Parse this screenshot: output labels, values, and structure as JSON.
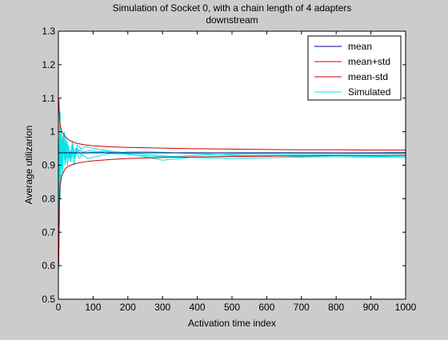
{
  "chart_data": {
    "type": "line",
    "title_lines": [
      "Simulation of Socket 0, with a chain length of 4 adapters",
      "downstream"
    ],
    "xlabel": "Activation time index",
    "ylabel": "Average utilizarion",
    "xlim": [
      0,
      1000
    ],
    "ylim": [
      0.5,
      1.3
    ],
    "xticks": [
      0,
      100,
      200,
      300,
      400,
      500,
      600,
      700,
      800,
      900,
      1000
    ],
    "yticks": [
      0.5,
      0.6,
      0.7,
      0.8,
      0.9,
      1.0,
      1.1,
      1.2,
      1.3
    ],
    "ytick_labels": [
      "0.5",
      "0.6",
      "0.7",
      "0.8",
      "0.9",
      "1",
      "1.1",
      "1.2",
      "1.3"
    ],
    "grid": false,
    "legend_position": "top-right",
    "series": [
      {
        "name": "mean",
        "color": "#00007f",
        "x": [
          0,
          1000
        ],
        "y": [
          0.937,
          0.937
        ]
      },
      {
        "name": "mean+std",
        "color": "#cc0000",
        "x": [
          1,
          3,
          5,
          10,
          20,
          30,
          50,
          75,
          100,
          150,
          200,
          300,
          400,
          500,
          600,
          700,
          800,
          900,
          1000
        ],
        "y": [
          1.1,
          1.05,
          1.02,
          1.0,
          0.985,
          0.975,
          0.966,
          0.961,
          0.958,
          0.955,
          0.953,
          0.951,
          0.949,
          0.948,
          0.947,
          0.946,
          0.946,
          0.945,
          0.945
        ]
      },
      {
        "name": "mean-std",
        "color": "#cc0000",
        "x": [
          1,
          2,
          3,
          5,
          10,
          20,
          30,
          50,
          75,
          100,
          150,
          200,
          300,
          400,
          500,
          600,
          700,
          800,
          900,
          1000
        ],
        "y": [
          0.6,
          0.7,
          0.79,
          0.84,
          0.87,
          0.89,
          0.898,
          0.905,
          0.91,
          0.913,
          0.917,
          0.92,
          0.923,
          0.925,
          0.926,
          0.927,
          0.928,
          0.929,
          0.929,
          0.93
        ]
      },
      {
        "name": "Simulated",
        "color": "#00e5e5",
        "traces": [
          {
            "x": [
              1,
              2,
              3,
              4,
              5,
              6,
              8,
              10,
              12,
              14,
              17,
              20,
              23,
              27,
              30,
              35,
              40,
              45,
              50,
              55,
              60,
              70,
              80,
              90,
              100,
              120,
              150,
              200,
              250,
              300,
              350,
              400,
              450,
              500,
              600,
              700,
              800,
              900,
              1000
            ],
            "y": [
              0.59,
              0.8,
              0.72,
              1.05,
              0.86,
              0.92,
              0.97,
              0.9,
              0.99,
              0.93,
              1.0,
              0.92,
              0.96,
              0.91,
              0.95,
              0.93,
              0.96,
              0.92,
              0.95,
              0.94,
              0.945,
              0.94,
              0.935,
              0.94,
              0.938,
              0.94,
              0.935,
              0.932,
              0.928,
              0.925,
              0.927,
              0.93,
              0.932,
              0.934,
              0.935,
              0.936,
              0.937,
              0.937,
              0.938
            ]
          },
          {
            "x": [
              1,
              2,
              3,
              5,
              7,
              9,
              11,
              14,
              18,
              22,
              26,
              30,
              36,
              42,
              48,
              55,
              65,
              75,
              90,
              110,
              130,
              160,
              200,
              250,
              300,
              350,
              400,
              500,
              600,
              700,
              800,
              900,
              1000
            ],
            "y": [
              0.65,
              0.98,
              0.77,
              1.06,
              0.88,
              0.98,
              0.89,
              0.96,
              0.92,
              0.98,
              0.9,
              0.95,
              0.91,
              0.96,
              0.92,
              0.95,
              0.93,
              0.94,
              0.945,
              0.94,
              0.942,
              0.938,
              0.935,
              0.925,
              0.915,
              0.92,
              0.925,
              0.928,
              0.93,
              0.932,
              0.933,
              0.934,
              0.935
            ]
          },
          {
            "x": [
              1,
              2,
              4,
              6,
              9,
              12,
              15,
              19,
              24,
              29,
              34,
              40,
              47,
              55,
              65,
              80,
              100,
              130,
              170,
              220,
              280,
              340,
              400,
              500,
              600,
              700,
              800,
              900,
              1000
            ],
            "y": [
              0.62,
              0.85,
              1.02,
              0.84,
              0.95,
              0.87,
              0.97,
              0.9,
              0.94,
              0.96,
              0.91,
              0.97,
              0.93,
              0.96,
              0.95,
              0.955,
              0.95,
              0.945,
              0.94,
              0.935,
              0.93,
              0.925,
              0.922,
              0.92,
              0.922,
              0.924,
              0.925,
              0.926,
              0.927
            ]
          },
          {
            "x": [
              1,
              3,
              5,
              8,
              11,
              15,
              20,
              25,
              31,
              38,
              45,
              52,
              60,
              70,
              85,
              105,
              125,
              150,
              200,
              260,
              320,
              380,
              450,
              520,
              600,
              700,
              800,
              900,
              1000
            ],
            "y": [
              0.7,
              0.95,
              0.8,
              1.0,
              0.89,
              0.99,
              0.91,
              0.97,
              0.92,
              0.95,
              0.9,
              0.94,
              0.92,
              0.93,
              0.92,
              0.925,
              0.93,
              0.935,
              0.94,
              0.94,
              0.938,
              0.935,
              0.933,
              0.93,
              0.928,
              0.926,
              0.925,
              0.924,
              0.923
            ]
          }
        ]
      }
    ]
  }
}
